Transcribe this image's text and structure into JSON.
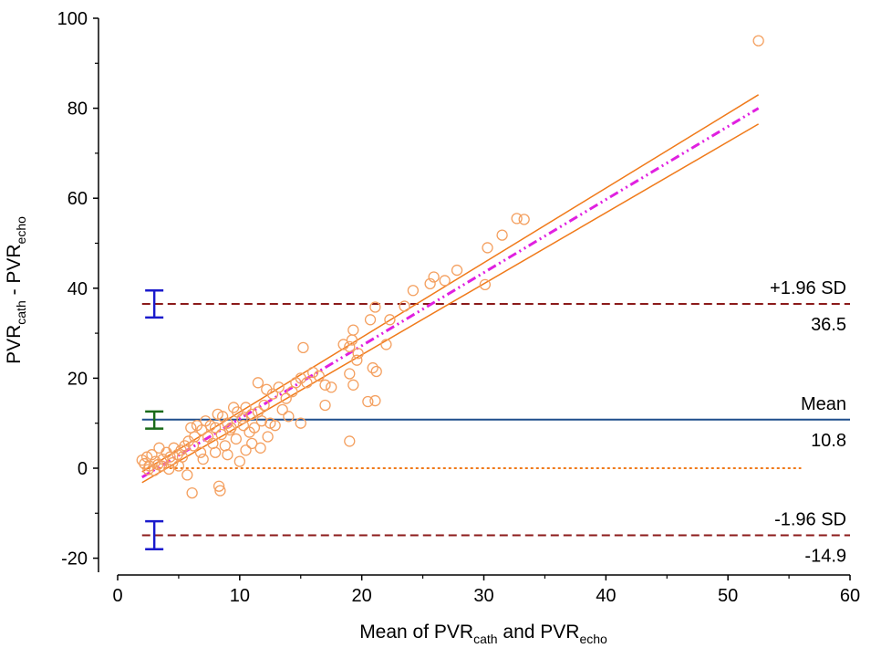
{
  "chart_data": {
    "type": "scatter",
    "title": "",
    "xlabel": {
      "main": "Mean of PVR",
      "sub1": "cath",
      "mid": " and PVR",
      "sub2": "echo"
    },
    "ylabel": {
      "a": "PVR",
      "sub1": "cath",
      "mid": " - PVR",
      "sub2": "echo"
    },
    "xlim": [
      0,
      60
    ],
    "ylim": [
      -23,
      100
    ],
    "xticks": [
      0,
      10,
      20,
      30,
      40,
      50,
      60
    ],
    "yticks": [
      -20,
      0,
      20,
      40,
      60,
      80,
      100
    ],
    "grid": false,
    "reference_lines": {
      "upper_loa": {
        "value": 36.5,
        "label": "+1.96 SD",
        "value_label": "36.5",
        "color": "#8b1a1a",
        "style": "dashed"
      },
      "mean": {
        "value": 10.8,
        "label": "Mean",
        "value_label": "10.8",
        "color": "#1f4e8c",
        "style": "solid"
      },
      "zero": {
        "value": 0,
        "color": "#f07a1a",
        "style": "dotted"
      },
      "lower_loa": {
        "value": -14.9,
        "label": "-1.96 SD",
        "value_label": "-14.9",
        "color": "#8b1a1a",
        "style": "dashed"
      }
    },
    "confidence_intervals": [
      {
        "name": "upper_loa_ci",
        "x": 3.0,
        "low": 33.5,
        "high": 39.5,
        "color": "#1a1acc"
      },
      {
        "name": "mean_ci",
        "x": 3.0,
        "low": 8.8,
        "high": 12.6,
        "color": "#1a6b1a"
      },
      {
        "name": "lower_loa_ci",
        "x": 3.0,
        "low": -18.0,
        "high": -11.8,
        "color": "#1a1acc"
      }
    ],
    "regression": {
      "fit": {
        "x0": 2.0,
        "y0": -2.0,
        "x1": 52.5,
        "y1": 80.0,
        "color": "#e020e0",
        "style": "dash-dot"
      },
      "ci_upper": {
        "x0": 2.0,
        "y0": -0.8,
        "x1": 52.5,
        "y1": 83.0,
        "color": "#f07a1a"
      },
      "ci_lower": {
        "x0": 2.0,
        "y0": -3.2,
        "x1": 52.5,
        "y1": 76.5,
        "color": "#f07a1a"
      }
    },
    "series": [
      {
        "name": "observations",
        "color": "#f4a060",
        "marker": "open-circle",
        "points": [
          [
            52.5,
            95
          ],
          [
            33.3,
            55.3
          ],
          [
            32.7,
            55.5
          ],
          [
            31.5,
            51.8
          ],
          [
            30.3,
            49.0
          ],
          [
            30.1,
            40.8
          ],
          [
            27.8,
            44.0
          ],
          [
            26.8,
            41.7
          ],
          [
            25.9,
            42.5
          ],
          [
            25.6,
            41.0
          ],
          [
            24.2,
            39.5
          ],
          [
            23.5,
            36.0
          ],
          [
            22.3,
            33.0
          ],
          [
            21.1,
            35.8
          ],
          [
            20.7,
            33.0
          ],
          [
            22.0,
            27.5
          ],
          [
            21.2,
            21.5
          ],
          [
            20.9,
            22.3
          ],
          [
            20.5,
            14.8
          ],
          [
            21.1,
            15.0
          ],
          [
            19.7,
            25.5
          ],
          [
            19.6,
            24.0
          ],
          [
            19.3,
            30.7
          ],
          [
            19.2,
            28.5
          ],
          [
            19.0,
            27.0
          ],
          [
            18.5,
            27.5
          ],
          [
            19.0,
            21.0
          ],
          [
            19.3,
            18.5
          ],
          [
            19.0,
            6.0
          ],
          [
            17.5,
            18.0
          ],
          [
            17.0,
            18.5
          ],
          [
            16.5,
            20.5
          ],
          [
            16.0,
            21.3
          ],
          [
            15.5,
            19.0
          ],
          [
            15.0,
            20.0
          ],
          [
            14.6,
            19.0
          ],
          [
            14.3,
            17.0
          ],
          [
            15.2,
            26.8
          ],
          [
            15.0,
            10.0
          ],
          [
            17.0,
            14.0
          ],
          [
            13.8,
            15.5
          ],
          [
            13.2,
            18.0
          ],
          [
            12.7,
            16.5
          ],
          [
            12.2,
            17.5
          ],
          [
            11.5,
            19.0
          ],
          [
            12.0,
            14.0
          ],
          [
            11.5,
            12.5
          ],
          [
            11.8,
            10.5
          ],
          [
            12.5,
            10.0
          ],
          [
            12.9,
            9.5
          ],
          [
            11.0,
            12.0
          ],
          [
            10.5,
            13.5
          ],
          [
            10.2,
            11.0
          ],
          [
            9.8,
            12.5
          ],
          [
            9.5,
            13.5
          ],
          [
            9.0,
            10.0
          ],
          [
            9.2,
            8.5
          ],
          [
            8.6,
            11.5
          ],
          [
            8.2,
            12.0
          ],
          [
            8.0,
            9.0
          ],
          [
            7.6,
            9.5
          ],
          [
            7.2,
            10.5
          ],
          [
            6.9,
            8.5
          ],
          [
            6.5,
            9.5
          ],
          [
            6.3,
            7.0
          ],
          [
            6.0,
            9.0
          ],
          [
            5.8,
            6.0
          ],
          [
            5.5,
            5.0
          ],
          [
            5.2,
            4.0
          ],
          [
            4.9,
            3.0
          ],
          [
            4.6,
            4.5
          ],
          [
            4.3,
            2.5
          ],
          [
            4.0,
            3.5
          ],
          [
            3.7,
            2.0
          ],
          [
            3.4,
            4.5
          ],
          [
            3.1,
            1.5
          ],
          [
            2.8,
            3.0
          ],
          [
            2.6,
            0.5
          ],
          [
            2.4,
            2.5
          ],
          [
            2.2,
            1.0
          ],
          [
            2.0,
            1.8
          ],
          [
            3.0,
            -0.5
          ],
          [
            3.6,
            0.5
          ],
          [
            4.2,
            -0.2
          ],
          [
            5.0,
            0.5
          ],
          [
            5.7,
            -1.5
          ],
          [
            6.1,
            -5.5
          ],
          [
            8.3,
            -4.0
          ],
          [
            8.4,
            -5.0
          ],
          [
            7.0,
            2.0
          ],
          [
            8.0,
            3.5
          ],
          [
            9.0,
            3.0
          ],
          [
            10.0,
            1.5
          ],
          [
            10.5,
            4.0
          ],
          [
            11.0,
            5.5
          ],
          [
            11.7,
            4.5
          ],
          [
            10.8,
            8.0
          ],
          [
            9.7,
            6.5
          ],
          [
            8.8,
            5.0
          ],
          [
            7.8,
            5.5
          ],
          [
            6.8,
            3.5
          ],
          [
            6.2,
            5.0
          ],
          [
            5.3,
            2.5
          ],
          [
            4.5,
            1.2
          ],
          [
            3.3,
            0.8
          ],
          [
            2.5,
            -0.3
          ],
          [
            13.5,
            13.0
          ],
          [
            14.0,
            11.5
          ],
          [
            12.3,
            7.0
          ],
          [
            11.2,
            9.0
          ],
          [
            10.3,
            9.5
          ],
          [
            9.3,
            9.0
          ],
          [
            8.5,
            7.5
          ],
          [
            7.4,
            7.0
          ]
        ]
      }
    ]
  }
}
